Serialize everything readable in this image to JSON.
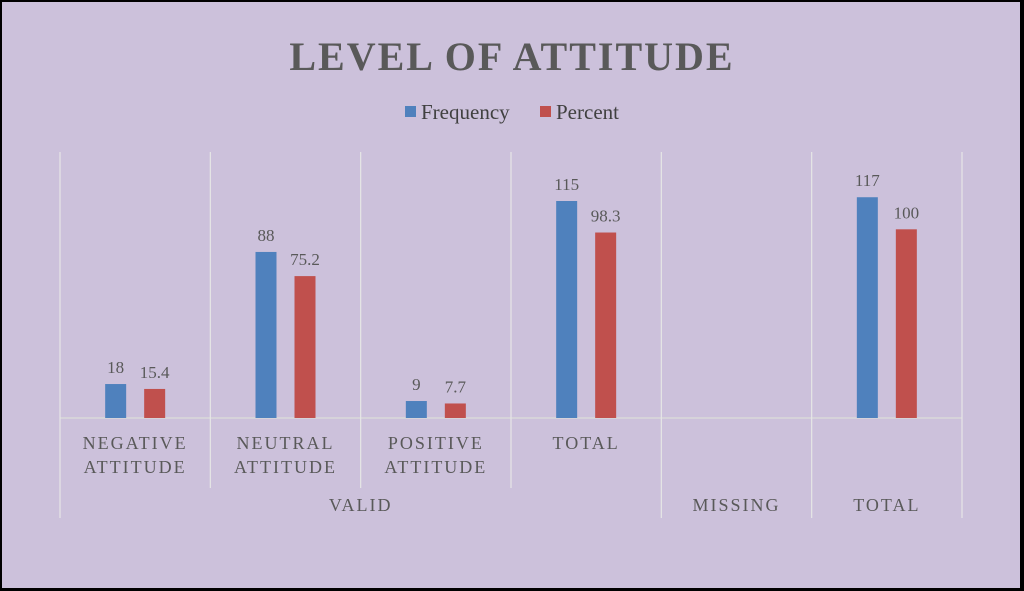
{
  "chart_data": {
    "type": "bar",
    "title": "LEVEL OF ATTITUDE",
    "groups": [
      {
        "label": "VALID",
        "categories": [
          [
            "NEGATIVE",
            "ATTITUDE"
          ],
          [
            "NEUTRAL",
            "ATTITUDE"
          ],
          [
            "POSITIVE",
            "ATTITUDE"
          ],
          [
            "TOTAL"
          ]
        ]
      },
      {
        "label": "MISSING",
        "categories": [
          [
            ""
          ]
        ]
      },
      {
        "label": "TOTAL",
        "categories": [
          [
            ""
          ]
        ]
      }
    ],
    "series": [
      {
        "name": "Frequency",
        "color": "#4f81bd",
        "values": [
          18,
          88,
          9,
          115,
          null,
          117
        ]
      },
      {
        "name": "Percent",
        "color": "#c0504d",
        "values": [
          15.4,
          75.2,
          7.7,
          98.3,
          null,
          100
        ]
      }
    ],
    "ylim": [
      0,
      140
    ],
    "legend_position": "top-center",
    "grid": false,
    "background": "#ccc1db"
  }
}
